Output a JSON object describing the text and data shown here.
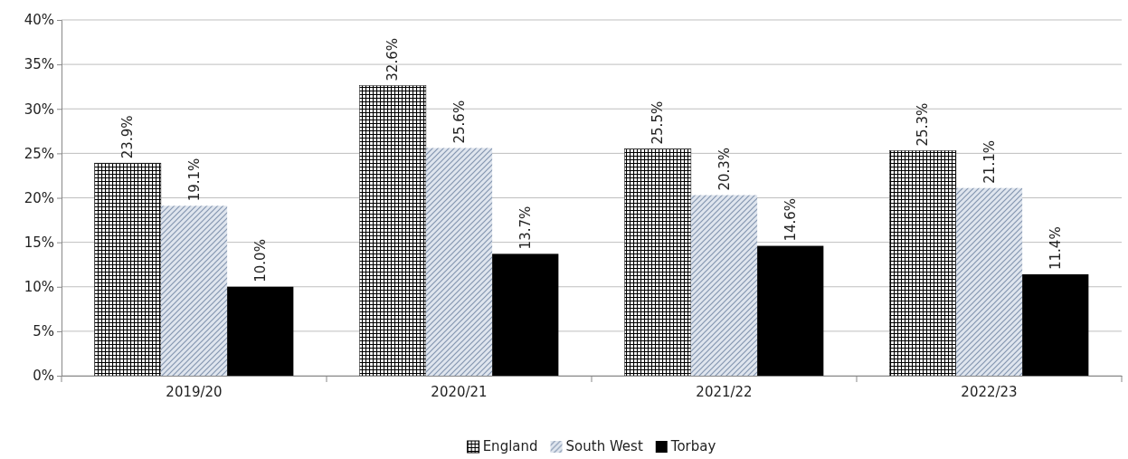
{
  "chart_data": {
    "type": "bar",
    "categories": [
      "2019/20",
      "2020/21",
      "2021/22",
      "2022/23"
    ],
    "series": [
      {
        "name": "England",
        "color": "#000000",
        "values": [
          23.9,
          32.6,
          25.5,
          25.3
        ]
      },
      {
        "name": "South West",
        "color": "#8496b0",
        "values": [
          19.1,
          25.6,
          20.3,
          21.1
        ]
      },
      {
        "name": "Torbay",
        "color": "#000000",
        "values": [
          10.0,
          13.7,
          14.6,
          11.4
        ]
      }
    ],
    "value_labels": [
      [
        "23.9%",
        "32.6%",
        "25.5%",
        "25.3%"
      ],
      [
        "19.1%",
        "25.6%",
        "20.3%",
        "21.1%"
      ],
      [
        "10.0%",
        "13.7%",
        "14.6%",
        "11.4%"
      ]
    ],
    "ylim": [
      0,
      40
    ],
    "yticks": [
      {
        "value": 0,
        "label": "0%"
      },
      {
        "value": 5,
        "label": "5%"
      },
      {
        "value": 10,
        "label": "10%"
      },
      {
        "value": 15,
        "label": "15%"
      },
      {
        "value": 20,
        "label": "20%"
      },
      {
        "value": 25,
        "label": "25%"
      },
      {
        "value": 30,
        "label": "30%"
      },
      {
        "value": 35,
        "label": "35%"
      },
      {
        "value": 40,
        "label": "40%"
      }
    ],
    "grid": "y",
    "legend": "bottom"
  }
}
